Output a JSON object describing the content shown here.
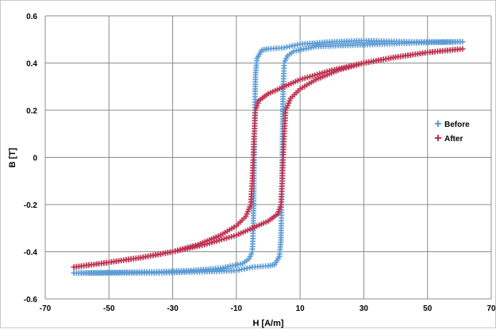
{
  "chart_data": {
    "type": "scatter",
    "title": "",
    "xlabel": "H [A/m]",
    "ylabel": "B [T]",
    "xlim": [
      -70,
      70
    ],
    "ylim": [
      -0.6,
      0.6
    ],
    "xticks": [
      -70,
      -50,
      -30,
      -10,
      10,
      30,
      50,
      70
    ],
    "yticks": [
      0.6,
      0.4,
      0.2,
      0,
      -0.2,
      -0.4,
      -0.6
    ],
    "xtick_labels": [
      "-70",
      "-50",
      "-30",
      "-10",
      "10",
      "30",
      "50",
      "70"
    ],
    "ytick_labels": [
      "0.6",
      "0.4",
      "0.2",
      "0",
      "-0.2",
      "-0.4",
      "-0.6"
    ],
    "grid": true,
    "legend_position": "right",
    "marker": "plus",
    "series": [
      {
        "name": "Before",
        "color": "#5b9bd5",
        "points": [
          [
            -61,
            -0.49
          ],
          [
            -55,
            -0.49
          ],
          [
            -45,
            -0.487
          ],
          [
            -35,
            -0.485
          ],
          [
            -25,
            -0.48
          ],
          [
            -15,
            -0.47
          ],
          [
            -8,
            -0.45
          ],
          [
            -6,
            -0.43
          ],
          [
            -5,
            -0.4
          ],
          [
            -4.7,
            -0.3
          ],
          [
            -4.5,
            -0.1
          ],
          [
            -4.4,
            0.0
          ],
          [
            -4.3,
            0.1
          ],
          [
            -4.2,
            0.2
          ],
          [
            -4.1,
            0.28
          ],
          [
            -4.0,
            0.35
          ],
          [
            -3.8,
            0.38
          ],
          [
            -3.5,
            0.42
          ],
          [
            -2,
            0.455
          ],
          [
            0,
            0.46
          ],
          [
            5,
            0.465
          ],
          [
            10,
            0.48
          ],
          [
            20,
            0.49
          ],
          [
            30,
            0.495
          ],
          [
            45,
            0.49
          ],
          [
            61,
            0.49
          ],
          [
            55,
            0.488
          ],
          [
            45,
            0.485
          ],
          [
            35,
            0.48
          ],
          [
            25,
            0.475
          ],
          [
            15,
            0.47
          ],
          [
            8,
            0.45
          ],
          [
            6,
            0.43
          ],
          [
            5,
            0.4
          ],
          [
            4.7,
            0.3
          ],
          [
            4.5,
            0.1
          ],
          [
            4.4,
            0.0
          ],
          [
            4.3,
            -0.1
          ],
          [
            4.2,
            -0.2
          ],
          [
            4.1,
            -0.28
          ],
          [
            4.0,
            -0.35
          ],
          [
            3.8,
            -0.38
          ],
          [
            3.5,
            -0.42
          ],
          [
            2,
            -0.455
          ],
          [
            0,
            -0.46
          ],
          [
            -5,
            -0.465
          ],
          [
            -10,
            -0.48
          ],
          [
            -20,
            -0.485
          ],
          [
            -35,
            -0.49
          ],
          [
            -50,
            -0.49
          ],
          [
            -61,
            -0.49
          ]
        ]
      },
      {
        "name": "After",
        "color": "#be3250",
        "points": [
          [
            -61,
            -0.465
          ],
          [
            -50,
            -0.445
          ],
          [
            -40,
            -0.425
          ],
          [
            -30,
            -0.4
          ],
          [
            -22,
            -0.37
          ],
          [
            -15,
            -0.33
          ],
          [
            -10,
            -0.29
          ],
          [
            -7,
            -0.25
          ],
          [
            -5.5,
            -0.2
          ],
          [
            -5,
            -0.1
          ],
          [
            -4.7,
            0.0
          ],
          [
            -4.4,
            0.1
          ],
          [
            -4.0,
            0.2
          ],
          [
            -3,
            0.24
          ],
          [
            0,
            0.27
          ],
          [
            5,
            0.3
          ],
          [
            10,
            0.33
          ],
          [
            20,
            0.37
          ],
          [
            30,
            0.4
          ],
          [
            40,
            0.425
          ],
          [
            50,
            0.445
          ],
          [
            61,
            0.46
          ],
          [
            50,
            0.445
          ],
          [
            40,
            0.425
          ],
          [
            30,
            0.4
          ],
          [
            22,
            0.37
          ],
          [
            15,
            0.33
          ],
          [
            10,
            0.29
          ],
          [
            7,
            0.25
          ],
          [
            5.5,
            0.2
          ],
          [
            5,
            0.1
          ],
          [
            4.7,
            0.0
          ],
          [
            4.4,
            -0.1
          ],
          [
            4.0,
            -0.2
          ],
          [
            3,
            -0.24
          ],
          [
            0,
            -0.27
          ],
          [
            -5,
            -0.3
          ],
          [
            -10,
            -0.33
          ],
          [
            -20,
            -0.37
          ],
          [
            -30,
            -0.4
          ],
          [
            -40,
            -0.425
          ],
          [
            -50,
            -0.445
          ],
          [
            -61,
            -0.465
          ]
        ]
      }
    ]
  }
}
